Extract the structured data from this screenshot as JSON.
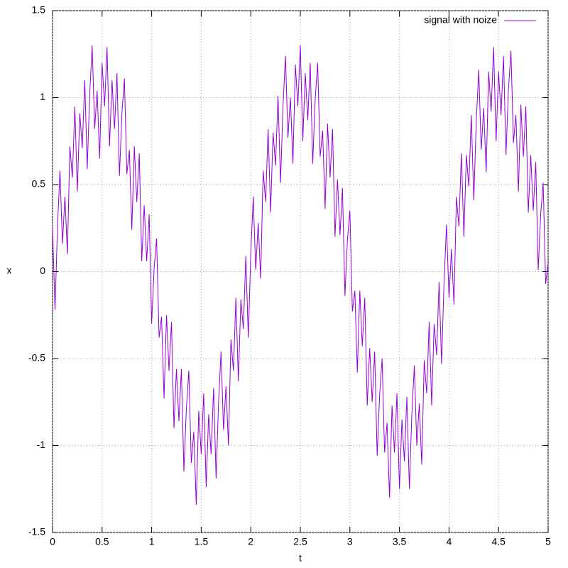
{
  "chart_data": {
    "type": "line",
    "xlabel": "t",
    "ylabel": "x",
    "xlim": [
      0,
      5
    ],
    "ylim": [
      -1.5,
      1.5
    ],
    "xticks": [
      0,
      0.5,
      1,
      1.5,
      2,
      2.5,
      3,
      3.5,
      4,
      4.5,
      5
    ],
    "yticks": [
      -1.5,
      -1,
      -0.5,
      0,
      0.5,
      1,
      1.5
    ],
    "grid": true,
    "legend": "upper right",
    "x": [
      0,
      0.025,
      0.05,
      0.075,
      0.1,
      0.125,
      0.15,
      0.175,
      0.2,
      0.225,
      0.25,
      0.275,
      0.3,
      0.325,
      0.35,
      0.375,
      0.4,
      0.425,
      0.45,
      0.475,
      0.5,
      0.525,
      0.55,
      0.575,
      0.6,
      0.625,
      0.65,
      0.675,
      0.7,
      0.725,
      0.75,
      0.775,
      0.8,
      0.825,
      0.85,
      0.875,
      0.9,
      0.925,
      0.95,
      0.975,
      1,
      1.025,
      1.05,
      1.075,
      1.1,
      1.125,
      1.15,
      1.175,
      1.2,
      1.225,
      1.25,
      1.275,
      1.3,
      1.325,
      1.35,
      1.375,
      1.4,
      1.425,
      1.45,
      1.475,
      1.5,
      1.525,
      1.55,
      1.575,
      1.6,
      1.625,
      1.65,
      1.675,
      1.7,
      1.725,
      1.75,
      1.775,
      1.8,
      1.825,
      1.85,
      1.875,
      1.9,
      1.925,
      1.95,
      1.975,
      2,
      2.025,
      2.05,
      2.075,
      2.1,
      2.125,
      2.15,
      2.175,
      2.2,
      2.225,
      2.25,
      2.275,
      2.3,
      2.325,
      2.35,
      2.375,
      2.4,
      2.425,
      2.45,
      2.475,
      2.5,
      2.525,
      2.55,
      2.575,
      2.6,
      2.625,
      2.65,
      2.675,
      2.7,
      2.725,
      2.75,
      2.775,
      2.8,
      2.825,
      2.85,
      2.875,
      2.9,
      2.925,
      2.95,
      2.975,
      3,
      3.025,
      3.05,
      3.075,
      3.1,
      3.125,
      3.15,
      3.175,
      3.2,
      3.225,
      3.25,
      3.275,
      3.3,
      3.325,
      3.35,
      3.375,
      3.4,
      3.425,
      3.45,
      3.475,
      3.5,
      3.525,
      3.55,
      3.575,
      3.6,
      3.625,
      3.65,
      3.675,
      3.7,
      3.725,
      3.75,
      3.775,
      3.8,
      3.825,
      3.85,
      3.875,
      3.9,
      3.925,
      3.95,
      3.975,
      4,
      4.025,
      4.05,
      4.075,
      4.1,
      4.125,
      4.15,
      4.175,
      4.2,
      4.225,
      4.25,
      4.275,
      4.3,
      4.325,
      4.35,
      4.375,
      4.4,
      4.425,
      4.45,
      4.475,
      4.5,
      4.525,
      4.55,
      4.575,
      4.6,
      4.625,
      4.65,
      4.675,
      4.7,
      4.725,
      4.75,
      4.775,
      4.8,
      4.825,
      4.85,
      4.875,
      4.9,
      4.925,
      4.95,
      4.975,
      5
    ],
    "series": [
      {
        "name": "signal with noize",
        "color": "#9400d3",
        "values": [
          0.25,
          -0.22,
          0.26,
          0.58,
          0.16,
          0.43,
          0.1,
          0.72,
          0.54,
          0.95,
          0.46,
          0.91,
          0.71,
          1.1,
          0.59,
          1.02,
          1.3,
          0.82,
          1.04,
          0.65,
          1.2,
          0.95,
          1.29,
          0.72,
          1.1,
          0.82,
          1.14,
          0.55,
          0.91,
          1.11,
          0.56,
          0.7,
          0.24,
          0.72,
          0.4,
          0.68,
          0.06,
          0.38,
          0.06,
          0.33,
          -0.3,
          0.02,
          0.19,
          -0.38,
          -0.26,
          -0.73,
          -0.25,
          -0.57,
          -0.29,
          -0.9,
          -0.56,
          -0.86,
          -0.56,
          -1.15,
          -0.79,
          -0.57,
          -1.1,
          -0.92,
          -1.34,
          -0.8,
          -1.05,
          -0.7,
          -1.24,
          -0.82,
          -1.05,
          -0.67,
          -1.19,
          -0.75,
          -0.46,
          -0.91,
          -0.66,
          -1.0,
          -0.39,
          -0.57,
          -0.15,
          -0.63,
          -0.16,
          -0.33,
          0.09,
          -0.38,
          0.1,
          0.43,
          0.01,
          0.28,
          -0.04,
          0.58,
          0.4,
          0.82,
          0.34,
          0.8,
          0.61,
          1.01,
          0.51,
          0.95,
          1.24,
          0.77,
          1.0,
          0.62,
          1.19,
          0.95,
          1.3,
          0.75,
          1.14,
          0.87,
          1.2,
          0.62,
          0.99,
          1.2,
          0.66,
          0.81,
          0.36,
          0.85,
          0.54,
          0.82,
          0.2,
          0.53,
          0.21,
          0.48,
          -0.14,
          0.18,
          0.35,
          -0.23,
          -0.11,
          -0.58,
          -0.11,
          -0.43,
          -0.15,
          -0.77,
          -0.44,
          -0.75,
          -0.46,
          -1.06,
          -0.71,
          -0.5,
          -1.04,
          -0.87,
          -1.3,
          -0.77,
          -1.04,
          -0.7,
          -1.25,
          -0.85,
          -1.09,
          -0.72,
          -1.25,
          -0.82,
          -0.54,
          -1.0,
          -0.76,
          -1.11,
          -0.51,
          -0.7,
          -0.29,
          -0.77,
          -0.3,
          -0.48,
          -0.06,
          -0.53,
          -0.06,
          0.27,
          -0.15,
          0.13,
          -0.19,
          0.43,
          0.26,
          0.68,
          0.2,
          0.67,
          0.49,
          0.9,
          0.41,
          0.86,
          1.16,
          0.7,
          0.94,
          0.57,
          1.15,
          0.92,
          1.29,
          0.75,
          1.15,
          0.9,
          1.24,
          0.67,
          1.05,
          1.27,
          0.74,
          0.9,
          0.46,
          0.96,
          0.66,
          0.95,
          0.34,
          0.67,
          0.35,
          0.63,
          0.01,
          0.33,
          0.51,
          -0.07,
          0.05
        ]
      }
    ]
  }
}
